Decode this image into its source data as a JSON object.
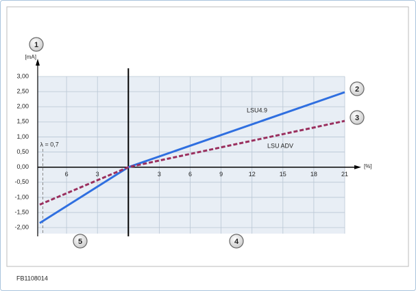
{
  "chart_data": {
    "type": "line",
    "y_unit": "[mA]",
    "x_unit": "[%]",
    "xlim": [
      -8.8,
      21
    ],
    "ylim": [
      -2.2,
      3.0
    ],
    "xticks": [
      {
        "value": -6,
        "label": "6"
      },
      {
        "value": -3,
        "label": "3"
      },
      3,
      6,
      9,
      12,
      15,
      18,
      21
    ],
    "yticks": [
      {
        "value": 3,
        "label": "3,00"
      },
      {
        "value": 2.5,
        "label": "2,50"
      },
      {
        "value": 2,
        "label": "2,00"
      },
      {
        "value": 1.5,
        "label": "1,50"
      },
      {
        "value": 1,
        "label": "1,00"
      },
      {
        "value": 0.5,
        "label": "0,50"
      },
      {
        "value": 0,
        "label": "0,00"
      },
      {
        "value": -0.5,
        "label": "-0,50"
      },
      {
        "value": -1,
        "label": "-1,00"
      },
      {
        "value": -1.5,
        "label": "-1,50"
      },
      {
        "value": -2,
        "label": "-2,00"
      }
    ],
    "grid": true,
    "series": [
      {
        "name": "LSU4.9",
        "color": "#2f6fe0",
        "dash": false,
        "x": [
          -8.6,
          0,
          21
        ],
        "values": [
          -1.85,
          0,
          2.48
        ]
      },
      {
        "name": "LSU ADV",
        "color": "#9a2f5e",
        "dash": true,
        "x": [
          -8.6,
          0,
          21
        ],
        "values": [
          -1.24,
          0,
          1.53
        ]
      }
    ],
    "lambda_line": {
      "x": -8.3,
      "label": "λ = 0,7"
    },
    "callouts": [
      "1",
      "2",
      "3",
      "4",
      "5"
    ],
    "figure_id": "FB1108014"
  }
}
